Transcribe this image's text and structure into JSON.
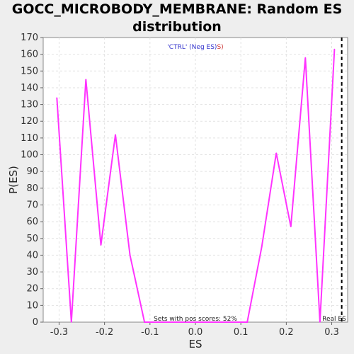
{
  "chart_data": {
    "type": "line",
    "title_line1": "GOCC_MICROBODY_MEMBRANE: Random ES",
    "title_line2": "distribution",
    "xlabel": "ES",
    "ylabel": "P(ES)",
    "xlim": [
      -0.335,
      0.335
    ],
    "ylim": [
      0,
      170
    ],
    "x_ticks": [
      -0.3,
      -0.2,
      -0.1,
      0.0,
      0.1,
      0.2,
      0.3
    ],
    "x_tick_labels": [
      "-0.3",
      "-0.2",
      "-0.1",
      "0.0",
      "0.1",
      "0.2",
      "0.3"
    ],
    "y_ticks": [
      0,
      10,
      20,
      30,
      40,
      50,
      60,
      70,
      80,
      90,
      100,
      110,
      120,
      130,
      140,
      150,
      160,
      170
    ],
    "grid": true,
    "legend": {
      "part1": "'CTRL' (Neg ES)",
      "part2": "S)",
      "part1_color": "#3333cc",
      "part2_color": "#cc3333"
    },
    "annotation_bottom": "Sets with pos scores: 52%",
    "real_es_label": "Real ES",
    "real_es_x": 0.322,
    "line_color": "#ff33ff",
    "series": [
      {
        "x": [
          -0.305,
          -0.273,
          -0.241,
          -0.208,
          -0.176,
          -0.144,
          -0.112,
          -0.079,
          -0.047,
          -0.015,
          0.017,
          0.049,
          0.081,
          0.114,
          0.146,
          0.178,
          0.21,
          0.242,
          0.274,
          0.306
        ],
        "values": [
          134,
          0,
          145,
          46,
          112,
          40,
          0,
          0,
          0,
          0,
          0,
          0,
          0,
          0,
          45,
          101,
          57,
          158,
          0,
          163
        ]
      }
    ]
  }
}
